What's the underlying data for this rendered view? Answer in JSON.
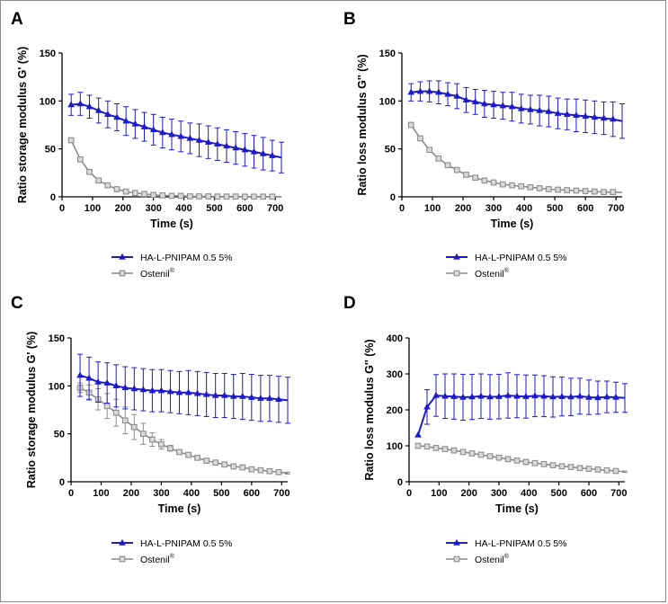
{
  "colors": {
    "blue": "#1d1ac9",
    "gray": "#8c8c8c",
    "axis": "#000000"
  },
  "chart_data": [
    {
      "type": "line",
      "panel": "A",
      "title": "",
      "xlabel": "Time (s)",
      "ylabel": "Ratio storage modulus G' (%)",
      "xlim": [
        0,
        720
      ],
      "ylim": [
        0,
        150
      ],
      "xticks": [
        "0",
        "100",
        "200",
        "300",
        "400",
        "500",
        "600",
        "700"
      ],
      "yticks": [
        "0",
        "50",
        "100",
        "150"
      ],
      "legend": "below",
      "series": [
        {
          "name": "HA-L-PNIPAM 0.5 5%",
          "color": "#1d1ac9",
          "marker": "triangle",
          "x": [
            30,
            60,
            90,
            120,
            150,
            180,
            210,
            240,
            270,
            300,
            330,
            360,
            390,
            420,
            450,
            480,
            510,
            540,
            570,
            600,
            630,
            660,
            690,
            720
          ],
          "y": [
            96,
            97,
            94,
            90,
            86,
            83,
            79,
            76,
            73,
            70,
            67,
            65,
            63,
            61,
            59,
            57,
            55,
            53,
            51,
            49,
            47,
            45,
            43,
            41
          ],
          "error": [
            11,
            12,
            12,
            13,
            14,
            14,
            15,
            15,
            15,
            16,
            16,
            16,
            16,
            16,
            17,
            17,
            17,
            17,
            17,
            17,
            17,
            17,
            16,
            16
          ]
        },
        {
          "name": "Ostenil®",
          "color": "#8c8c8c",
          "marker": "square",
          "x": [
            30,
            60,
            90,
            120,
            150,
            180,
            210,
            240,
            270,
            300,
            330,
            360,
            390,
            420,
            450,
            480,
            510,
            540,
            570,
            600,
            630,
            660,
            690,
            720
          ],
          "y": [
            59,
            39,
            26,
            17,
            12,
            8,
            5.5,
            4,
            3,
            2,
            1.5,
            1,
            1,
            0.5,
            0.5,
            0.5,
            0.3,
            0.3,
            0.3,
            0.2,
            0.2,
            0.2,
            0.2,
            0.2
          ],
          "error": [
            0,
            0,
            0,
            0,
            0,
            0,
            0,
            0,
            0,
            0,
            0,
            0,
            0,
            0,
            0,
            0,
            0,
            0,
            0,
            0,
            0,
            0,
            0,
            0
          ]
        }
      ]
    },
    {
      "type": "line",
      "panel": "B",
      "title": "",
      "xlabel": "Time (s)",
      "ylabel": "Ratio loss modulus G'' (%)",
      "xlim": [
        0,
        720
      ],
      "ylim": [
        0,
        150
      ],
      "xticks": [
        "0",
        "100",
        "200",
        "300",
        "400",
        "500",
        "600",
        "700"
      ],
      "yticks": [
        "0",
        "50",
        "100",
        "150"
      ],
      "legend": "below",
      "series": [
        {
          "name": "HA-L-PNIPAM 0.5 5%",
          "color": "#1d1ac9",
          "marker": "triangle",
          "x": [
            30,
            60,
            90,
            120,
            150,
            180,
            210,
            240,
            270,
            300,
            330,
            360,
            390,
            420,
            450,
            480,
            510,
            540,
            570,
            600,
            630,
            660,
            690,
            720
          ],
          "y": [
            109,
            110,
            110,
            109,
            107,
            105,
            101,
            99,
            97,
            96,
            95,
            94,
            92,
            91,
            90,
            89,
            87,
            86,
            85,
            84,
            83,
            82,
            81,
            79
          ],
          "error": [
            9,
            10,
            11,
            12,
            12,
            13,
            13,
            13,
            14,
            14,
            14,
            15,
            15,
            15,
            16,
            16,
            16,
            16,
            17,
            17,
            17,
            17,
            18,
            18
          ]
        },
        {
          "name": "Ostenil®",
          "color": "#8c8c8c",
          "marker": "square",
          "x": [
            30,
            60,
            90,
            120,
            150,
            180,
            210,
            240,
            270,
            300,
            330,
            360,
            390,
            420,
            450,
            480,
            510,
            540,
            570,
            600,
            630,
            660,
            690,
            720
          ],
          "y": [
            75,
            61,
            49,
            40,
            33,
            28,
            23,
            20,
            17,
            15,
            13,
            12,
            11,
            10,
            9,
            8,
            7.5,
            7,
            6.5,
            6,
            5.5,
            5,
            5,
            4.5
          ],
          "error": [
            0,
            0,
            0,
            0,
            0,
            0,
            0,
            0,
            0,
            0,
            0,
            0,
            0,
            0,
            0,
            0,
            0,
            0,
            0,
            0,
            0,
            0,
            0,
            0
          ]
        }
      ]
    },
    {
      "type": "line",
      "panel": "C",
      "title": "",
      "xlabel": "Time (s)",
      "ylabel": "Ratio storage modulus G' (%)",
      "xlim": [
        0,
        720
      ],
      "ylim": [
        0,
        150
      ],
      "xticks": [
        "0",
        "100",
        "200",
        "300",
        "400",
        "500",
        "600",
        "700"
      ],
      "yticks": [
        "0",
        "50",
        "100",
        "150"
      ],
      "legend": "below",
      "series": [
        {
          "name": "HA-L-PNIPAM 0.5 5%",
          "color": "#1d1ac9",
          "marker": "triangle",
          "x": [
            30,
            60,
            90,
            120,
            150,
            180,
            210,
            240,
            270,
            300,
            330,
            360,
            390,
            420,
            450,
            480,
            510,
            540,
            570,
            600,
            630,
            660,
            690,
            720
          ],
          "y": [
            111,
            108,
            104,
            103,
            100,
            98,
            97,
            96,
            95,
            95,
            94,
            93,
            93,
            92,
            91,
            90,
            90,
            89,
            89,
            88,
            87,
            87,
            86,
            85
          ],
          "error": [
            22,
            22,
            21,
            21,
            22,
            22,
            22,
            22,
            22,
            22,
            22,
            22,
            23,
            23,
            23,
            23,
            23,
            23,
            24,
            24,
            24,
            24,
            24,
            24
          ]
        },
        {
          "name": "Ostenil®",
          "color": "#8c8c8c",
          "marker": "square",
          "x": [
            30,
            60,
            90,
            120,
            150,
            180,
            210,
            240,
            270,
            300,
            330,
            360,
            390,
            420,
            450,
            480,
            510,
            540,
            570,
            600,
            630,
            660,
            690,
            720
          ],
          "y": [
            98,
            93,
            86,
            79,
            72,
            64,
            57,
            50,
            44,
            39,
            35,
            31,
            28,
            25,
            22,
            20,
            18,
            16,
            15,
            13,
            12,
            11,
            10,
            9
          ],
          "error": [
            5,
            8,
            11,
            13,
            14,
            14,
            13,
            11,
            7,
            5,
            3,
            2,
            1,
            1,
            1,
            1,
            1,
            1,
            1,
            1,
            1,
            1,
            1,
            1
          ]
        }
      ]
    },
    {
      "type": "line",
      "panel": "D",
      "title": "",
      "xlabel": "Time (s)",
      "ylabel": "Ratio loss modulus G'' (%)",
      "xlim": [
        0,
        720
      ],
      "ylim": [
        0,
        400
      ],
      "xticks": [
        "0",
        "100",
        "200",
        "300",
        "400",
        "500",
        "600",
        "700"
      ],
      "yticks": [
        "0",
        "100",
        "200",
        "300",
        "400"
      ],
      "legend": "below",
      "series": [
        {
          "name": "HA-L-PNIPAM 0.5 5%",
          "color": "#1d1ac9",
          "marker": "triangle",
          "x": [
            30,
            60,
            90,
            120,
            150,
            180,
            210,
            240,
            270,
            300,
            330,
            360,
            390,
            420,
            450,
            480,
            510,
            540,
            570,
            600,
            630,
            660,
            690,
            720
          ],
          "y": [
            130,
            208,
            240,
            238,
            237,
            235,
            236,
            238,
            236,
            237,
            240,
            238,
            237,
            239,
            238,
            236,
            237,
            236,
            238,
            235,
            234,
            236,
            235,
            233
          ],
          "error": [
            0,
            48,
            58,
            62,
            63,
            64,
            63,
            62,
            62,
            62,
            63,
            60,
            60,
            58,
            57,
            56,
            54,
            52,
            50,
            48,
            46,
            44,
            42,
            40
          ]
        },
        {
          "name": "Ostenil®",
          "color": "#8c8c8c",
          "marker": "square",
          "x": [
            30,
            60,
            90,
            120,
            150,
            180,
            210,
            240,
            270,
            300,
            330,
            360,
            390,
            420,
            450,
            480,
            510,
            540,
            570,
            600,
            630,
            660,
            690,
            720
          ],
          "y": [
            100,
            98,
            94,
            91,
            87,
            83,
            79,
            75,
            71,
            67,
            63,
            59,
            55,
            52,
            49,
            46,
            43,
            41,
            38,
            36,
            34,
            32,
            30,
            28
          ],
          "error": [
            4,
            5,
            6,
            6,
            7,
            6,
            6,
            5,
            5,
            4,
            4,
            4,
            3,
            3,
            3,
            3,
            3,
            2,
            2,
            2,
            2,
            2,
            2,
            2
          ]
        }
      ]
    }
  ]
}
